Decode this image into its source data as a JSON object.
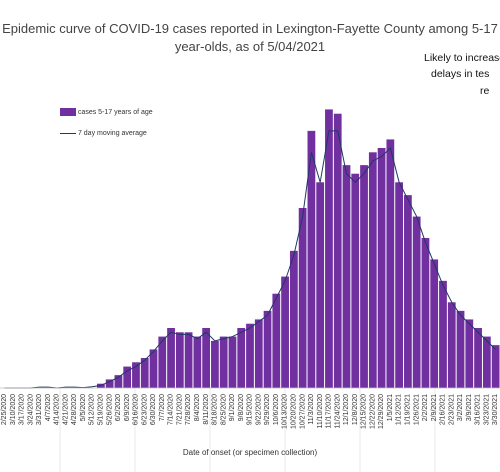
{
  "chart_data": {
    "type": "bar",
    "title": "Epidemic curve of COVID-19 cases reported in Lexington-Fayette County among 5-17 year-olds, as of 5/04/2021",
    "title_line1": "Epidemic curve of COVID-19 cases reported in Lexington-Fayette County among 5-17",
    "title_line2": "year-olds, as of 5/04/2021",
    "annotation_lines": [
      "Likely to increase",
      "delays in tes",
      "re"
    ],
    "xlabel": "Date of onset (or specimen collection)",
    "ylabel": "",
    "grid": true,
    "legend_position": "top-left",
    "colors": {
      "bars": "#7030a0",
      "line": "#1f3864"
    },
    "tick_labels": [
      "2/25/2020",
      "3/10/2020",
      "3/17/2020",
      "3/24/2020",
      "3/31/2020",
      "4/7/2020",
      "4/14/2020",
      "4/21/2020",
      "4/28/2020",
      "5/5/2020",
      "5/12/2020",
      "5/19/2020",
      "5/26/2020",
      "6/2/2020",
      "6/9/2020",
      "6/16/2020",
      "6/23/2020",
      "6/30/2020",
      "7/7/2020",
      "7/14/2020",
      "7/21/2020",
      "7/28/2020",
      "8/4/2020",
      "8/11/2020",
      "8/18/2020",
      "8/25/2020",
      "9/1/2020",
      "9/8/2020",
      "9/15/2020",
      "9/22/2020",
      "9/29/2020",
      "10/6/2020",
      "10/13/2020",
      "10/20/2020",
      "10/27/2020",
      "11/3/2020",
      "11/10/2020",
      "11/17/2020",
      "11/24/2020",
      "12/1/2020",
      "12/8/2020",
      "12/15/2020",
      "12/22/2020",
      "12/29/2020",
      "1/5/2021",
      "1/12/2021",
      "1/19/2021",
      "1/26/2021",
      "2/2/2021",
      "2/9/2021",
      "2/16/2021",
      "2/23/2021",
      "3/2/2021",
      "3/9/2021",
      "3/16/2021",
      "3/23/2021",
      "3/30/2021"
    ],
    "series": [
      {
        "name": "cases 5-17 years of age",
        "kind": "bar",
        "weekly_daily_values": [
          0,
          0,
          0,
          0,
          0,
          0,
          0,
          0,
          0,
          0,
          0,
          1,
          2,
          3,
          5,
          6,
          7,
          9,
          12,
          14,
          13,
          13,
          12,
          14,
          11,
          12,
          12,
          14,
          15,
          16,
          18,
          22,
          26,
          32,
          42,
          60,
          48,
          65,
          64,
          52,
          50,
          52,
          55,
          56,
          58,
          48,
          45,
          40,
          35,
          30,
          25,
          20,
          18,
          16,
          14,
          12,
          10
        ]
      },
      {
        "name": "7 day moving average",
        "kind": "line",
        "weekly_daily_values": [
          0,
          0,
          0,
          0,
          0.2,
          0.2,
          0,
          0.2,
          0.2,
          0.1,
          0.3,
          0.6,
          1.5,
          2.5,
          4,
          5,
          6.5,
          8.5,
          11,
          13,
          12.5,
          12.5,
          11.5,
          13,
          11,
          11.5,
          12,
          13,
          14,
          15.5,
          17,
          21,
          25,
          31,
          40,
          55,
          48,
          60,
          60,
          50,
          48,
          50,
          53,
          54,
          56,
          48,
          44,
          40,
          34,
          29,
          24,
          20,
          17,
          15,
          13,
          11,
          9
        ]
      }
    ],
    "ylim": [
      0,
      70
    ]
  }
}
